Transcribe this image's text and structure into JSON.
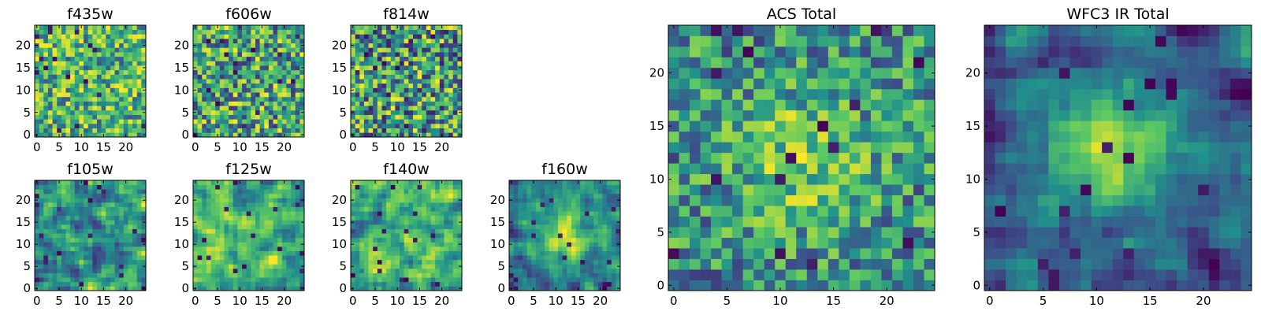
{
  "figure": {
    "background": "#ffffff",
    "colormap": "viridis",
    "colormap_stops": [
      "#440154",
      "#3b528b",
      "#21918c",
      "#5ec962",
      "#fde725"
    ]
  },
  "chart_data": [
    {
      "type": "heatmap",
      "title": "f435w",
      "grid_size": 25,
      "xlim": [
        0,
        24
      ],
      "ylim": [
        0,
        24
      ],
      "x_ticks": [
        "0",
        "5",
        "10",
        "15",
        "20"
      ],
      "y_ticks": [
        "0",
        "5",
        "10",
        "15",
        "20"
      ],
      "grid": false,
      "value_range": [
        0,
        1
      ],
      "texture": "fine speckle, mostly green-yellow",
      "seed": 11
    },
    {
      "type": "heatmap",
      "title": "f606w",
      "grid_size": 25,
      "xlim": [
        0,
        24
      ],
      "ylim": [
        0,
        24
      ],
      "x_ticks": [
        "0",
        "5",
        "10",
        "15",
        "20"
      ],
      "y_ticks": [
        "0",
        "5",
        "10",
        "15",
        "20"
      ],
      "grid": false,
      "value_range": [
        0,
        1
      ],
      "texture": "fine speckle, green-yellow with dark pixels",
      "seed": 23
    },
    {
      "type": "heatmap",
      "title": "f814w",
      "grid_size": 25,
      "xlim": [
        0,
        24
      ],
      "ylim": [
        0,
        24
      ],
      "x_ticks": [
        "0",
        "5",
        "10",
        "15",
        "20"
      ],
      "y_ticks": [
        "0",
        "5",
        "10",
        "15",
        "20"
      ],
      "grid": false,
      "value_range": [
        0,
        1
      ],
      "texture": "fine speckle, teal-green-yellow",
      "seed": 37
    },
    {
      "type": "heatmap",
      "title": "f105w",
      "grid_size": 25,
      "xlim": [
        0,
        24
      ],
      "ylim": [
        0,
        24
      ],
      "x_ticks": [
        "0",
        "5",
        "10",
        "15",
        "20"
      ],
      "y_ticks": [
        "0",
        "5",
        "10",
        "15",
        "20"
      ],
      "grid": false,
      "value_range": [
        0,
        1
      ],
      "texture": "smooth blotches, green",
      "seed": 41
    },
    {
      "type": "heatmap",
      "title": "f125w",
      "grid_size": 25,
      "xlim": [
        0,
        24
      ],
      "ylim": [
        0,
        24
      ],
      "x_ticks": [
        "0",
        "5",
        "10",
        "15",
        "20"
      ],
      "y_ticks": [
        "0",
        "5",
        "10",
        "15",
        "20"
      ],
      "grid": false,
      "value_range": [
        0,
        1
      ],
      "texture": "smooth blotches, green-yellow",
      "seed": 53
    },
    {
      "type": "heatmap",
      "title": "f140w",
      "grid_size": 25,
      "xlim": [
        0,
        24
      ],
      "ylim": [
        0,
        24
      ],
      "x_ticks": [
        "0",
        "5",
        "10",
        "15",
        "20"
      ],
      "y_ticks": [
        "0",
        "5",
        "10",
        "15",
        "20"
      ],
      "grid": false,
      "value_range": [
        0,
        1
      ],
      "texture": "smooth blotches, green-yellow",
      "seed": 67
    },
    {
      "type": "heatmap",
      "title": "f160w",
      "grid_size": 25,
      "xlim": [
        0,
        24
      ],
      "ylim": [
        0,
        24
      ],
      "x_ticks": [
        "0",
        "5",
        "10",
        "15",
        "20"
      ],
      "y_ticks": [
        "0",
        "5",
        "10",
        "15",
        "20"
      ],
      "grid": false,
      "value_range": [
        0,
        1
      ],
      "texture": "bright central source, darker edges",
      "seed": 79
    },
    {
      "type": "heatmap",
      "title": "ACS Total",
      "grid_size": 25,
      "xlim": [
        0,
        24
      ],
      "ylim": [
        0,
        24
      ],
      "x_ticks": [
        "0",
        "5",
        "10",
        "15",
        "20"
      ],
      "y_ticks": [
        "0",
        "5",
        "10",
        "15",
        "20"
      ],
      "grid": false,
      "value_range": [
        0,
        1
      ],
      "texture": "speckle with bright central region",
      "seed": 97
    },
    {
      "type": "heatmap",
      "title": "WFC3 IR Total",
      "grid_size": 25,
      "xlim": [
        0,
        24
      ],
      "ylim": [
        0,
        24
      ],
      "x_ticks": [
        "0",
        "5",
        "10",
        "15",
        "20"
      ],
      "y_ticks": [
        "0",
        "5",
        "10",
        "15",
        "20"
      ],
      "grid": false,
      "value_range": [
        0,
        1
      ],
      "texture": "smooth, bright source centered near (11, 13), dark patches",
      "seed": 113
    }
  ]
}
